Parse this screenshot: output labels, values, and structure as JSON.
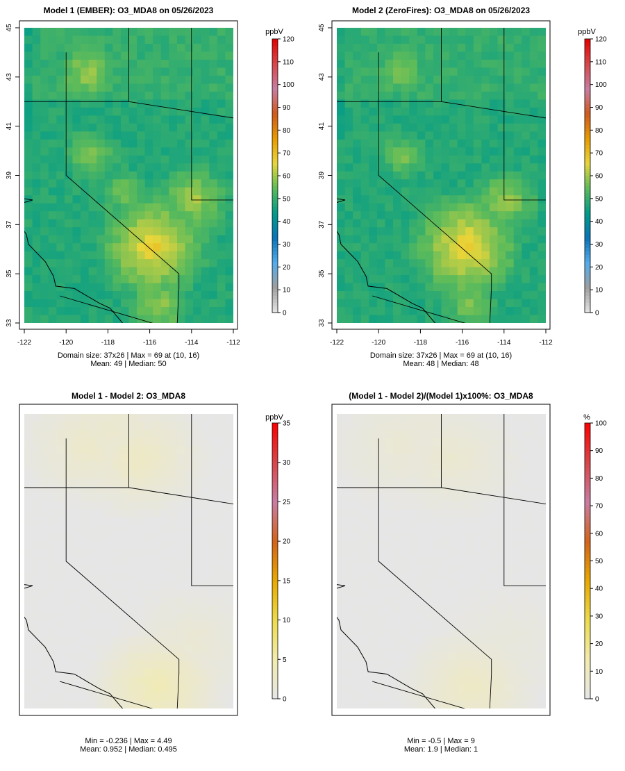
{
  "figure_title": "",
  "chart_data": [
    {
      "type": "heatmap",
      "title": "Model 1 (EMBER): O3_MDA8 on 05/26/2023",
      "variable": "O3_MDA8",
      "date": "05/26/2023",
      "legend_label": "ppbV",
      "legend_ticks": [
        0,
        10,
        20,
        30,
        40,
        50,
        60,
        70,
        80,
        90,
        100,
        110,
        120
      ],
      "legend_range": [
        0,
        120
      ],
      "colorscale": [
        "#e6e6e6",
        "#9e9e9e",
        "#55acec",
        "#0a73b7",
        "#009b8a",
        "#5dbb5a",
        "#e8d63b",
        "#e89b00",
        "#d05a1e",
        "#c97da4",
        "#d9464a",
        "#e60000"
      ],
      "x": [
        -122,
        -120,
        -118,
        -116,
        -114,
        -112
      ],
      "y": [
        33,
        35,
        37,
        39,
        41,
        43,
        45
      ],
      "xlim": [
        -122,
        -112
      ],
      "ylim": [
        33,
        45
      ],
      "axis_units": "degrees",
      "show_x_axis": true,
      "show_y_axis": true,
      "grid": false,
      "legend_position": "right",
      "hotspots": [
        {
          "lon": -115.8,
          "lat": 36.1,
          "value": 68
        },
        {
          "lon": -115.6,
          "lat": 33.7,
          "value": 60
        },
        {
          "lon": -113.9,
          "lat": 38.0,
          "value": 61
        },
        {
          "lon": -119.0,
          "lat": 43.2,
          "value": 60
        },
        {
          "lon": -118.8,
          "lat": 39.8,
          "value": 58
        },
        {
          "lon": -117.3,
          "lat": 38.3,
          "value": 57
        }
      ],
      "domain_size": "37x26",
      "max_value": 69,
      "max_location": "(10, 16)",
      "mean": 49,
      "median": 50,
      "summary_line1": "Domain size: 37x26 | Max = 69 at (10, 16)",
      "summary_line2": "Mean: 49 |  Median: 50"
    },
    {
      "type": "heatmap",
      "title": "Model 2 (ZeroFires): O3_MDA8 on 05/26/2023",
      "variable": "O3_MDA8",
      "date": "05/26/2023",
      "legend_label": "ppbV",
      "legend_ticks": [
        0,
        10,
        20,
        30,
        40,
        50,
        60,
        70,
        80,
        90,
        100,
        110,
        120
      ],
      "legend_range": [
        0,
        120
      ],
      "colorscale": [
        "#e6e6e6",
        "#9e9e9e",
        "#55acec",
        "#0a73b7",
        "#009b8a",
        "#5dbb5a",
        "#e8d63b",
        "#e89b00",
        "#d05a1e",
        "#c97da4",
        "#d9464a",
        "#e60000"
      ],
      "x": [
        -122,
        -120,
        -118,
        -116,
        -114,
        -112
      ],
      "y": [
        33,
        35,
        37,
        39,
        41,
        43,
        45
      ],
      "xlim": [
        -122,
        -112
      ],
      "ylim": [
        33,
        45
      ],
      "axis_units": "degrees",
      "show_x_axis": true,
      "show_y_axis": true,
      "grid": false,
      "legend_position": "right",
      "hotspots": [
        {
          "lon": -115.8,
          "lat": 36.1,
          "value": 68
        },
        {
          "lon": -115.6,
          "lat": 33.7,
          "value": 58
        },
        {
          "lon": -113.9,
          "lat": 38.0,
          "value": 60
        },
        {
          "lon": -119.0,
          "lat": 43.2,
          "value": 58
        },
        {
          "lon": -118.8,
          "lat": 39.8,
          "value": 57
        }
      ],
      "domain_size": "37x26",
      "max_value": 69,
      "max_location": "(10, 16)",
      "mean": 48,
      "median": 48,
      "summary_line1": "Domain size: 37x26 | Max = 69 at (10, 16)",
      "summary_line2": "Mean: 48 |  Median: 48"
    },
    {
      "type": "heatmap",
      "title": "Model 1 - Model 2: O3_MDA8",
      "variable": "O3_MDA8",
      "legend_label": "ppbV",
      "legend_ticks": [
        0,
        5,
        10,
        15,
        20,
        25,
        30,
        35
      ],
      "legend_range": [
        0,
        35
      ],
      "colorscale": [
        "#e6e6e6",
        "#f2ebb0",
        "#eddc4c",
        "#e8a800",
        "#d4641a",
        "#c97da4",
        "#d9464a",
        "#ff0000"
      ],
      "xlim": [
        -122,
        -112
      ],
      "ylim": [
        33,
        45
      ],
      "show_x_axis": false,
      "show_y_axis": false,
      "grid": false,
      "legend_position": "right",
      "hotspots": [
        {
          "lon": -119.0,
          "lat": 43.7,
          "value": 2.6
        },
        {
          "lon": -116.5,
          "lat": 43.2,
          "value": 3.2
        },
        {
          "lon": -117.8,
          "lat": 44.4,
          "value": 2.2
        },
        {
          "lon": -115.6,
          "lat": 33.9,
          "value": 4.49
        },
        {
          "lon": -114.0,
          "lat": 35.6,
          "value": 1.8
        }
      ],
      "min": -0.236,
      "max": 4.49,
      "mean": 0.952,
      "median": 0.495,
      "summary_line1": "Min = -0.236 | Max = 4.49",
      "summary_line2": "Mean: 0.952 |  Median: 0.495"
    },
    {
      "type": "heatmap",
      "title": "(Model 1 - Model 2)/(Model 1)x100%: O3_MDA8",
      "variable": "O3_MDA8",
      "legend_label": "%",
      "legend_ticks": [
        0,
        10,
        20,
        30,
        40,
        50,
        60,
        70,
        80,
        90,
        100
      ],
      "legend_range": [
        0,
        100
      ],
      "colorscale": [
        "#e6e6e6",
        "#f2ebb0",
        "#eddc4c",
        "#e8a800",
        "#d4641a",
        "#c97da4",
        "#d9464a",
        "#ff0000"
      ],
      "xlim": [
        -122,
        -112
      ],
      "ylim": [
        33,
        45
      ],
      "show_x_axis": false,
      "show_y_axis": false,
      "grid": false,
      "legend_position": "right",
      "hotspots": [
        {
          "lon": -119.0,
          "lat": 43.7,
          "value": 5
        },
        {
          "lon": -116.5,
          "lat": 43.2,
          "value": 6
        },
        {
          "lon": -117.8,
          "lat": 44.4,
          "value": 4
        },
        {
          "lon": -115.6,
          "lat": 33.9,
          "value": 9
        },
        {
          "lon": -114.0,
          "lat": 35.6,
          "value": 3
        }
      ],
      "min": -0.5,
      "max": 9,
      "mean": 1.9,
      "median": 1,
      "summary_line1": "Min = -0.5 | Max = 9",
      "summary_line2": "Mean: 1.9 |  Median: 1"
    }
  ]
}
